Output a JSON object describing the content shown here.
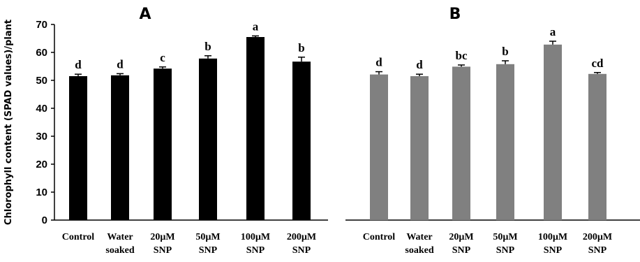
{
  "y_axis_label": "Chlorophyll content (SPAD values)/plant",
  "chart_data": [
    {
      "type": "bar",
      "title": "A",
      "categories": [
        "Control",
        "Water soaked",
        "20µM SNP",
        "50µM SNP",
        "100µM SNP",
        "200µM SNP"
      ],
      "category_lines": [
        [
          "Control"
        ],
        [
          "Water",
          "soaked"
        ],
        [
          "20µM",
          "SNP"
        ],
        [
          "50µM",
          "SNP"
        ],
        [
          "100µM",
          "SNP"
        ],
        [
          "200µM",
          "SNP"
        ]
      ],
      "values": [
        51.5,
        51.8,
        54.2,
        57.8,
        65.5,
        56.7
      ],
      "errors": [
        0.7,
        0.6,
        0.6,
        1.0,
        0.4,
        1.6
      ],
      "labels": [
        "d",
        "d",
        "c",
        "b",
        "a",
        "b"
      ],
      "bar_color": "#000000",
      "ylim": [
        0,
        70
      ],
      "yticks": [
        0,
        10,
        20,
        30,
        40,
        50,
        60,
        70
      ],
      "grid": false
    },
    {
      "type": "bar",
      "title": "B",
      "categories": [
        "Control",
        "Water soaked",
        "20µM SNP",
        "50µM SNP",
        "100µM SNP",
        "200µM SNP"
      ],
      "category_lines": [
        [
          "Control"
        ],
        [
          "Water",
          "soaked"
        ],
        [
          "20µM",
          "SNP"
        ],
        [
          "50µM",
          "SNP"
        ],
        [
          "100µM",
          "SNP"
        ],
        [
          "200µM",
          "SNP"
        ]
      ],
      "values": [
        52.1,
        51.5,
        54.9,
        55.8,
        62.8,
        52.3
      ],
      "errors": [
        1.0,
        0.7,
        0.6,
        1.2,
        1.2,
        0.5
      ],
      "labels": [
        "d",
        "d",
        "bc",
        "b",
        "a",
        "cd"
      ],
      "bar_color": "#808080",
      "ylim": [
        0,
        70
      ],
      "grid": false
    }
  ]
}
